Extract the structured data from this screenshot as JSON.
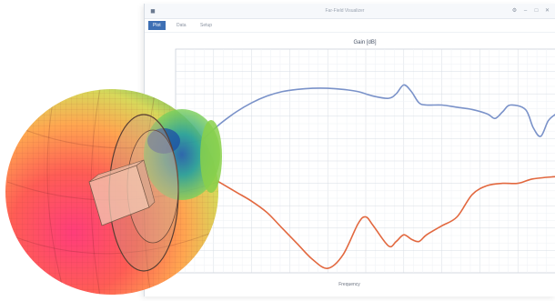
{
  "window": {
    "title": "Far-Field Visualizer",
    "app_icon": "app-logo-icon",
    "controls": [
      "settings-icon",
      "minimize-icon",
      "maximize-icon",
      "close-icon"
    ]
  },
  "tabs": [
    {
      "label": "Plot",
      "active": true
    },
    {
      "label": "Data",
      "active": false
    },
    {
      "label": "Setup",
      "active": false
    }
  ],
  "colors": {
    "accent": "#3d6fb4",
    "series_blue": "#7a92c9",
    "series_orange": "#e2683f"
  },
  "chart_data": {
    "type": "line",
    "title": "Gain [dB]",
    "xlabel": "Frequency",
    "ylabel": "",
    "xlim": [
      0,
      100
    ],
    "ylim": [
      0,
      100
    ],
    "grid": true,
    "legend": "none",
    "series": [
      {
        "color": "#7a92c9",
        "x": [
          0,
          4,
          8,
          12,
          16,
          20,
          24,
          28,
          32,
          36,
          40,
          44,
          48,
          52,
          56,
          58,
          60,
          62,
          64,
          66,
          70,
          74,
          78,
          82,
          84,
          86,
          88,
          92,
          94,
          96,
          98,
          100
        ],
        "y": [
          49,
          55,
          61,
          67,
          72,
          76,
          79,
          81,
          82,
          82.5,
          82.5,
          82,
          81,
          79,
          78,
          80,
          84,
          81,
          76,
          75,
          75,
          74,
          73,
          71,
          69,
          72,
          75,
          73,
          65,
          61,
          68,
          71
        ]
      },
      {
        "color": "#e2683f",
        "x": [
          0,
          4,
          8,
          12,
          16,
          20,
          24,
          28,
          32,
          36,
          40,
          44,
          48,
          50,
          52,
          56,
          58,
          60,
          62,
          64,
          66,
          70,
          74,
          78,
          82,
          86,
          90,
          94,
          100
        ],
        "y": [
          49,
          47,
          44,
          40,
          36,
          32,
          27,
          20,
          13,
          6,
          2,
          8,
          22,
          25,
          21,
          12,
          14,
          17,
          15,
          14,
          17,
          21,
          25,
          35,
          39,
          40,
          40,
          42,
          43
        ]
      }
    ]
  }
}
